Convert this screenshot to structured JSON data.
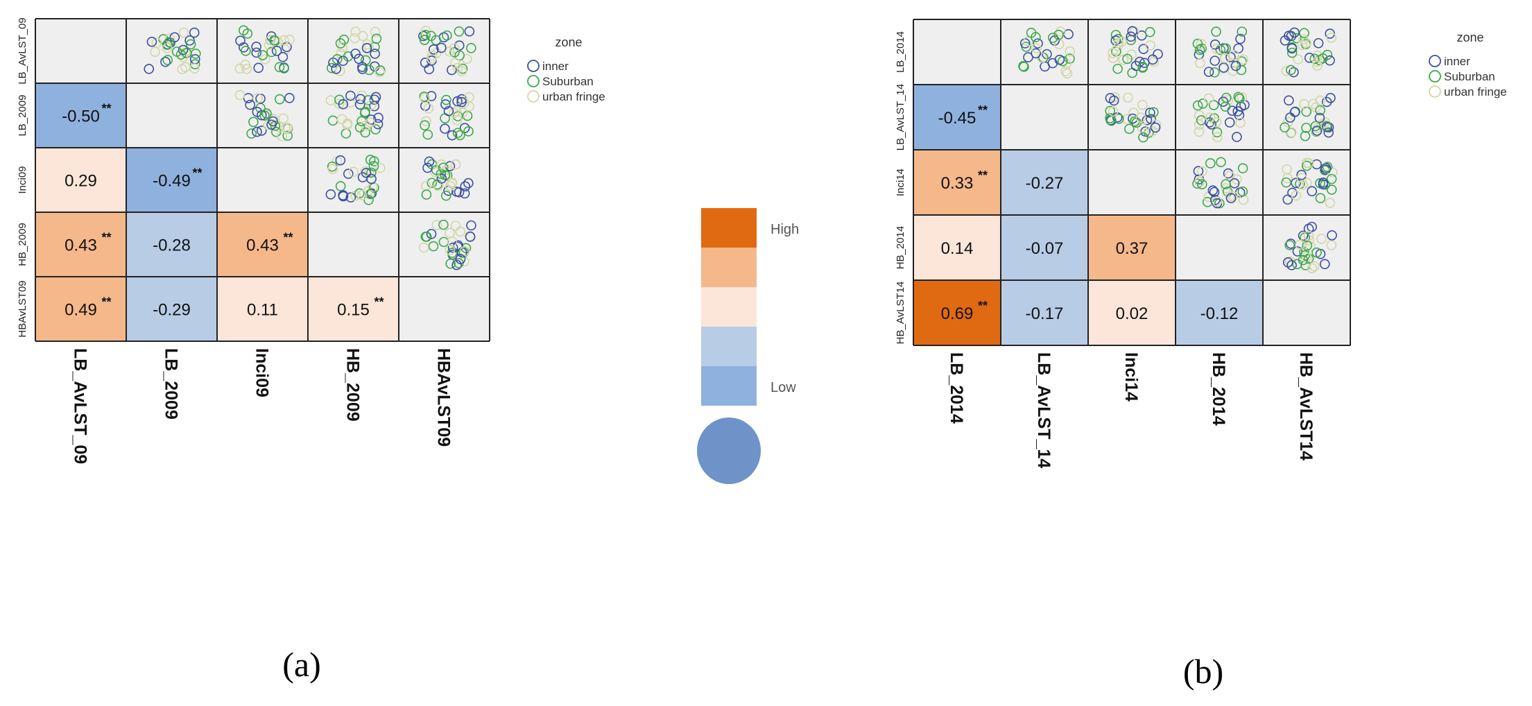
{
  "colors": {
    "inner": "#3b4fa0",
    "suburban": "#3da84a",
    "urban_fringe": "#d2d6a8",
    "scale": [
      "#e06a12",
      "#f5b88a",
      "#fbe6d9",
      "#b8cce6",
      "#8fb1de"
    ],
    "circle": "#6e93c8"
  },
  "color_scale": {
    "high_label": "High",
    "low_label": "Low"
  },
  "chart_data": [
    {
      "type": "heatmap",
      "caption": "(a)",
      "variables": [
        "LB_AvLST_09",
        "LB_2009",
        "Inci09",
        "HB_2009",
        "HBAvLST09"
      ],
      "row_labels": [
        "LB_AvLST_09",
        "LB_2009",
        "Inci09",
        "HB_2009",
        "HBAvLST09"
      ],
      "col_labels": [
        "LB_AvLST_09",
        "LB_2009",
        "Inci09",
        "HB_2009",
        "HBAvLST09"
      ],
      "legend": {
        "title": "zone",
        "items": [
          "inner",
          "Suburban",
          "urban fringe"
        ]
      },
      "correlations": [
        {
          "row": 1,
          "col": 0,
          "value": "-0.50",
          "sig": "**",
          "level": 4
        },
        {
          "row": 2,
          "col": 0,
          "value": "0.29",
          "sig": "",
          "level": 2
        },
        {
          "row": 2,
          "col": 1,
          "value": "-0.49",
          "sig": "**",
          "level": 4
        },
        {
          "row": 3,
          "col": 0,
          "value": "0.43",
          "sig": "**",
          "level": 1
        },
        {
          "row": 3,
          "col": 1,
          "value": "-0.28",
          "sig": "",
          "level": 3
        },
        {
          "row": 3,
          "col": 2,
          "value": "0.43",
          "sig": "**",
          "level": 1
        },
        {
          "row": 4,
          "col": 0,
          "value": "0.49",
          "sig": "**",
          "level": 1
        },
        {
          "row": 4,
          "col": 1,
          "value": "-0.29",
          "sig": "",
          "level": 3
        },
        {
          "row": 4,
          "col": 2,
          "value": "0.11",
          "sig": "",
          "level": 2
        },
        {
          "row": 4,
          "col": 3,
          "value": "0.15",
          "sig": "**",
          "level": 2
        }
      ]
    },
    {
      "type": "heatmap",
      "caption": "(b)",
      "variables": [
        "LB_2014",
        "LB_AvLST_14",
        "Inci14",
        "HB_2014",
        "HB_AvLST14"
      ],
      "row_labels": [
        "LB_2014",
        "LB_AvLST_14",
        "Inci14",
        "HB_2014",
        "HB_AvLST14"
      ],
      "col_labels": [
        "LB_2014",
        "LB_AvLST_14",
        "Inci14",
        "HB_2014",
        "HB_AvLST14"
      ],
      "legend": {
        "title": "zone",
        "items": [
          "inner",
          "Suburban",
          "urban fringe"
        ]
      },
      "correlations": [
        {
          "row": 1,
          "col": 0,
          "value": "-0.45",
          "sig": "**",
          "level": 4
        },
        {
          "row": 2,
          "col": 0,
          "value": "0.33",
          "sig": "**",
          "level": 1
        },
        {
          "row": 2,
          "col": 1,
          "value": "-0.27",
          "sig": "",
          "level": 3
        },
        {
          "row": 3,
          "col": 0,
          "value": "0.14",
          "sig": "",
          "level": 2
        },
        {
          "row": 3,
          "col": 1,
          "value": "-0.07",
          "sig": "",
          "level": 3
        },
        {
          "row": 3,
          "col": 2,
          "value": "0.37",
          "sig": "",
          "level": 1
        },
        {
          "row": 4,
          "col": 0,
          "value": "0.69",
          "sig": "**",
          "level": 0
        },
        {
          "row": 4,
          "col": 1,
          "value": "-0.17",
          "sig": "",
          "level": 3
        },
        {
          "row": 4,
          "col": 2,
          "value": "0.02",
          "sig": "",
          "level": 2
        },
        {
          "row": 4,
          "col": 3,
          "value": "-0.12",
          "sig": "",
          "level": 3
        }
      ]
    }
  ]
}
